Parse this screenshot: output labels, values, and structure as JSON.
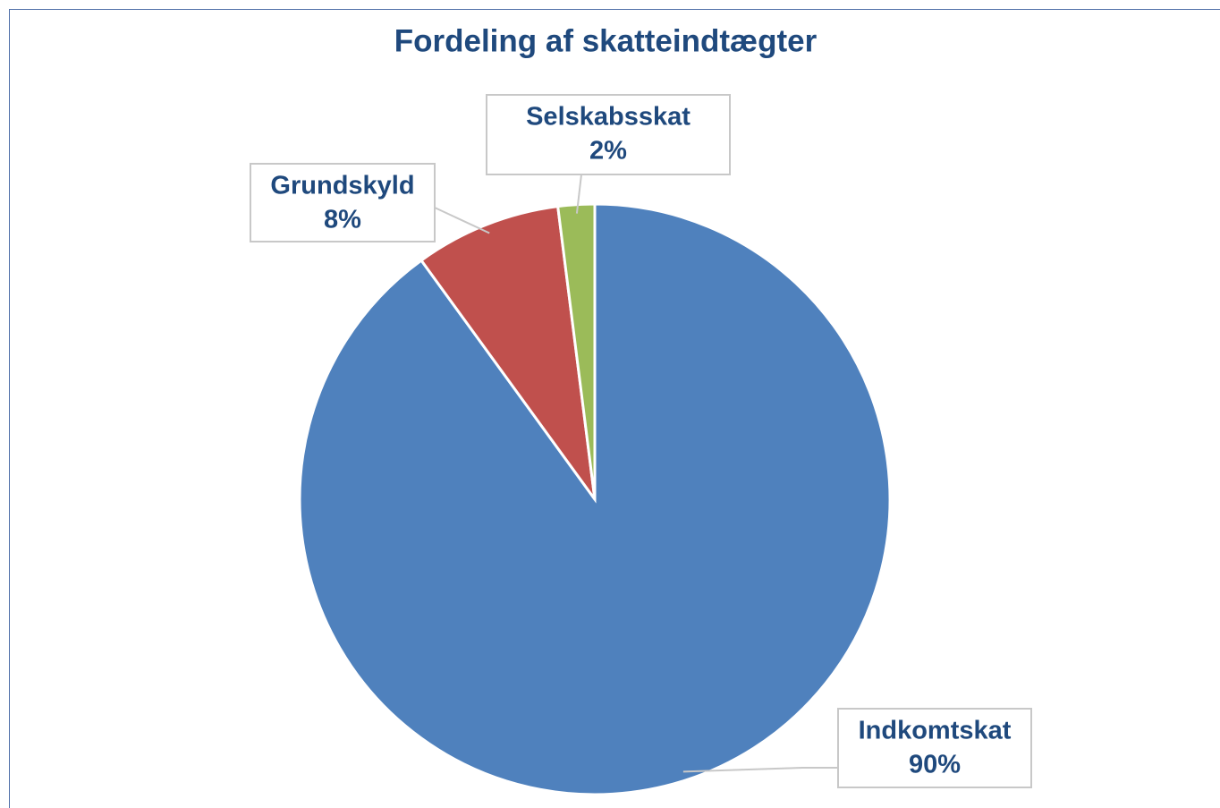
{
  "chart_data": {
    "type": "pie",
    "title": "Fordeling af skatteindtægter",
    "categories": [
      "Indkomtskat",
      "Grundskyld",
      "Selskabsskat"
    ],
    "values": [
      90,
      8,
      2
    ],
    "value_labels": [
      "90%",
      "8%",
      "2%"
    ],
    "colors": [
      "#4f81bd",
      "#c0504d",
      "#9bbb59"
    ]
  }
}
